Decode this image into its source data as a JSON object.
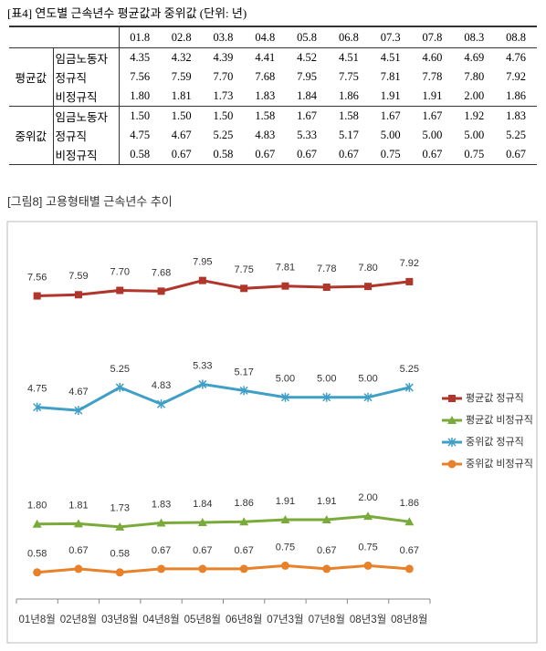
{
  "table": {
    "title": "[표4] 연도별 근속년수 평균값과 중위값 (단위: 년)",
    "header": [
      "01.8",
      "02.8",
      "03.8",
      "04.8",
      "05.8",
      "06.8",
      "07.3",
      "07.8",
      "08.3",
      "08.8"
    ],
    "groups": [
      {
        "label": "평균값",
        "rows": [
          {
            "label": "임금노동자",
            "cells": [
              "4.35",
              "4.32",
              "4.39",
              "4.41",
              "4.52",
              "4.51",
              "4.51",
              "4.60",
              "4.69",
              "4.76"
            ]
          },
          {
            "label": "정규직",
            "cells": [
              "7.56",
              "7.59",
              "7.70",
              "7.68",
              "7.95",
              "7.75",
              "7.81",
              "7.78",
              "7.80",
              "7.92"
            ]
          },
          {
            "label": "비정규직",
            "cells": [
              "1.80",
              "1.81",
              "1.73",
              "1.83",
              "1.84",
              "1.86",
              "1.91",
              "1.91",
              "2.00",
              "1.86"
            ]
          }
        ]
      },
      {
        "label": "중위값",
        "rows": [
          {
            "label": "임금노동자",
            "cells": [
              "1.50",
              "1.50",
              "1.50",
              "1.58",
              "1.67",
              "1.58",
              "1.67",
              "1.67",
              "1.92",
              "1.83"
            ]
          },
          {
            "label": "정규직",
            "cells": [
              "4.75",
              "4.67",
              "5.25",
              "4.83",
              "5.33",
              "5.17",
              "5.00",
              "5.00",
              "5.00",
              "5.25"
            ]
          },
          {
            "label": "비정규직",
            "cells": [
              "0.58",
              "0.67",
              "0.58",
              "0.67",
              "0.67",
              "0.67",
              "0.75",
              "0.67",
              "0.75",
              "0.67"
            ]
          }
        ]
      }
    ]
  },
  "chart_data": {
    "type": "line",
    "title": "[그림8] 고용형태별 근속년수 추이",
    "categories": [
      "01년8월",
      "02년8월",
      "03년8월",
      "04년8월",
      "05년8월",
      "06년8월",
      "07년3월",
      "07년8월",
      "08년3월",
      "08년8월"
    ],
    "ylim": [
      0,
      9
    ],
    "series": [
      {
        "name": "평균값 정규직",
        "color": "#b0352b",
        "marker": "square",
        "values": [
          7.56,
          7.59,
          7.7,
          7.68,
          7.95,
          7.75,
          7.81,
          7.78,
          7.8,
          7.92
        ],
        "value_labels": [
          "7.56",
          "7.59",
          "7.70",
          "7.68",
          "7.95",
          "7.75",
          "7.81",
          "7.78",
          "7.80",
          "7.92"
        ]
      },
      {
        "name": "평균값 비정규직",
        "color": "#7aab3a",
        "marker": "triangle",
        "values": [
          1.8,
          1.81,
          1.73,
          1.83,
          1.84,
          1.86,
          1.91,
          1.91,
          2.0,
          1.86
        ],
        "value_labels": [
          "1.80",
          "1.81",
          "1.73",
          "1.83",
          "1.84",
          "1.86",
          "1.91",
          "1.91",
          "2.00",
          "1.86"
        ]
      },
      {
        "name": "중위값 정규직",
        "color": "#3f9fc6",
        "marker": "star",
        "values": [
          4.75,
          4.67,
          5.25,
          4.83,
          5.33,
          5.17,
          5.0,
          5.0,
          5.0,
          5.25
        ],
        "value_labels": [
          "4.75",
          "4.67",
          "5.25",
          "4.83",
          "5.33",
          "5.17",
          "5.00",
          "5.00",
          "5.00",
          "5.25"
        ]
      },
      {
        "name": "중위값 비정규직",
        "color": "#e8822a",
        "marker": "circle",
        "values": [
          0.58,
          0.67,
          0.58,
          0.67,
          0.67,
          0.67,
          0.75,
          0.67,
          0.75,
          0.67
        ],
        "value_labels": [
          "0.58",
          "0.67",
          "0.58",
          "0.67",
          "0.67",
          "0.67",
          "0.75",
          "0.67",
          "0.75",
          "0.67"
        ]
      }
    ]
  }
}
